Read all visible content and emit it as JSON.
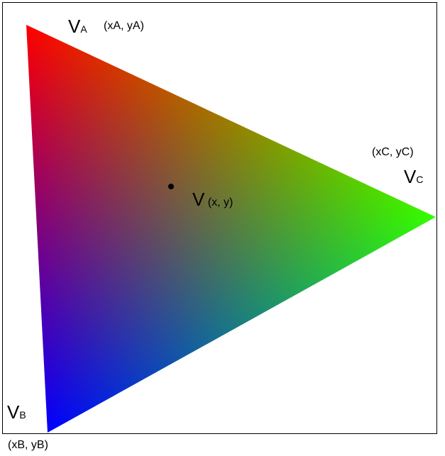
{
  "vertices": {
    "a": {
      "name": "V",
      "sub": "A",
      "coords": "(xA, yA)",
      "color": "#ff0000"
    },
    "b": {
      "name": "V",
      "sub": "B",
      "coords": "(xB, yB)",
      "color": "#0000ff"
    },
    "c": {
      "name": "V",
      "sub": "C",
      "coords": "(xC, yC)",
      "color": "#33ff00"
    }
  },
  "point": {
    "name": "V",
    "coords": "(x, y)",
    "color": "#000000"
  }
}
